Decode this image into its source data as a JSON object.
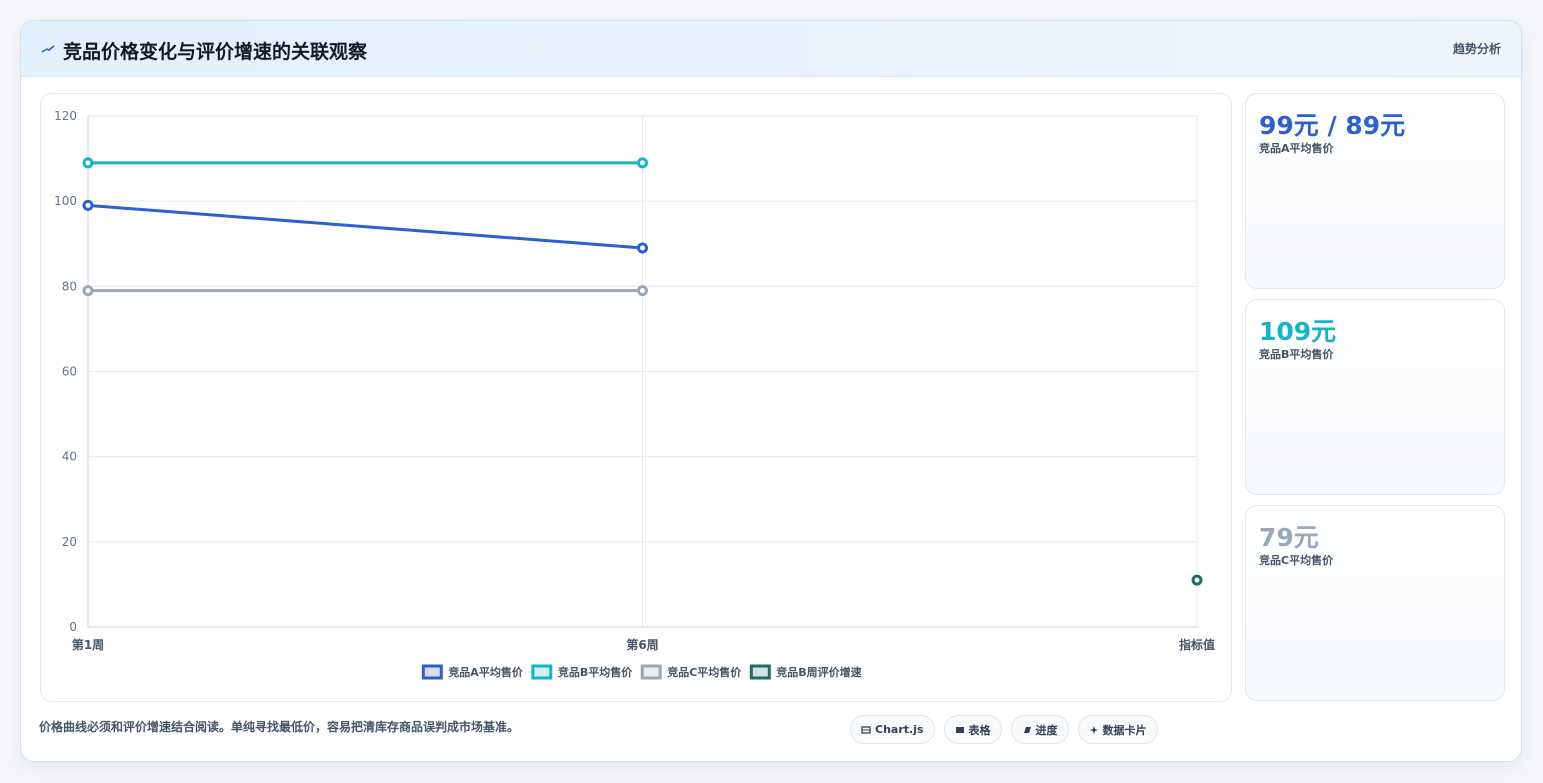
{
  "header": {
    "title": "竞品价格变化与评价增速的关联观察",
    "tag": "趋势分析"
  },
  "chart_data": {
    "type": "line",
    "categories": [
      "第1周",
      "第6周",
      "指标值"
    ],
    "series": [
      {
        "name": "竞品A平均售价",
        "color": "#2c5fd0",
        "values": [
          99,
          89,
          null
        ]
      },
      {
        "name": "竞品B平均售价",
        "color": "#17b3c8",
        "values": [
          109,
          109,
          null
        ]
      },
      {
        "name": "竞品C平均售价",
        "color": "#9aa8bc",
        "values": [
          79,
          79,
          null
        ]
      },
      {
        "name": "竞品B周评价增速",
        "color": "#1a6f66",
        "values": [
          null,
          null,
          11
        ]
      }
    ],
    "ylim": [
      0,
      120
    ],
    "yticks": [
      0,
      20,
      40,
      60,
      80,
      100,
      120
    ],
    "grid": true,
    "legend": "bottom"
  },
  "cards": [
    {
      "value": "99元 / 89元",
      "label": "竞品A平均售价",
      "color": "#2c5fd0"
    },
    {
      "value": "109元",
      "label": "竞品B平均售价",
      "color": "#17b3c8"
    },
    {
      "value": "79元",
      "label": "竞品C平均售价",
      "color": "#9aa8bc"
    }
  ],
  "footer": {
    "note": "价格曲线必须和评价增速结合阅读。单纯寻找最低价，容易把清库存商品误判成市场基准。",
    "buttons": [
      "Chart.js",
      "表格",
      "进度",
      "数据卡片"
    ]
  }
}
